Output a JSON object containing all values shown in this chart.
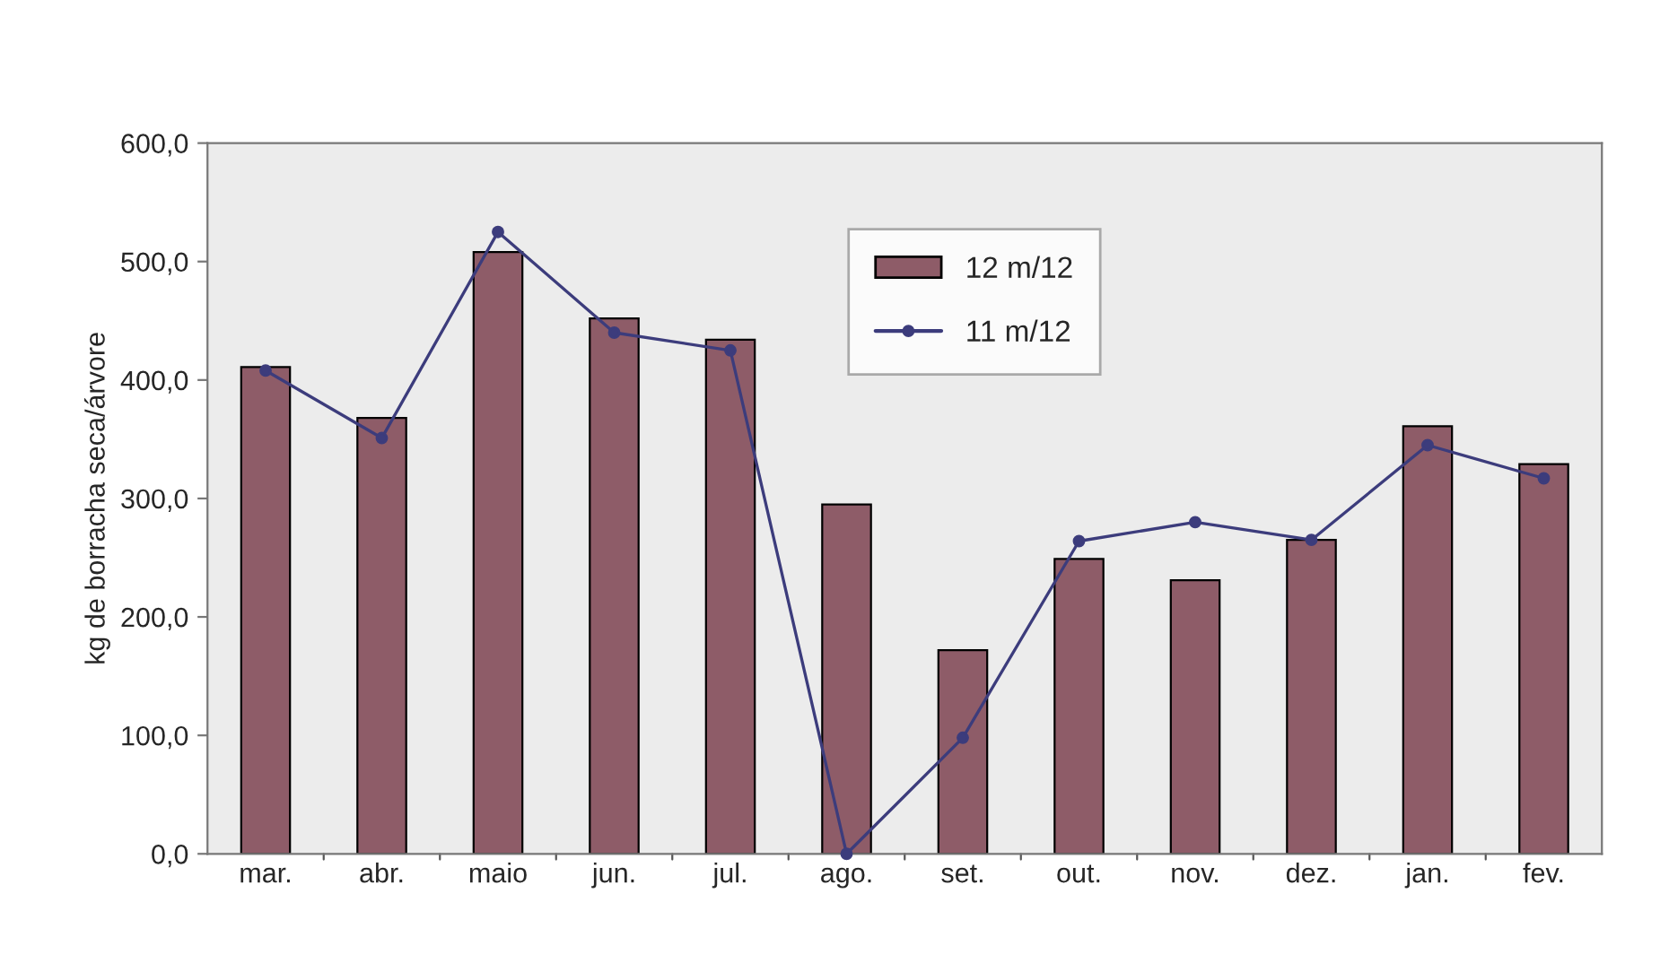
{
  "chart_data": {
    "type": "bar",
    "ylabel": "kg de borracha seca/árvore",
    "categories": [
      "mar.",
      "abr.",
      "maio",
      "jun.",
      "jul.",
      "ago.",
      "set.",
      "out.",
      "nov.",
      "dez.",
      "jan.",
      "fev."
    ],
    "series": [
      {
        "name": "12 m/12",
        "color": "#8e5c68",
        "values": [
          411,
          368,
          508,
          452,
          434,
          295,
          172,
          249,
          231,
          265,
          361,
          329
        ]
      },
      {
        "name": "11 m/12",
        "type": "line",
        "color": "#3c3c7c",
        "values": [
          408,
          351,
          525,
          440,
          425,
          0,
          98,
          264,
          280,
          265,
          345,
          317
        ]
      }
    ],
    "ylim": [
      0,
      600
    ],
    "yticks": [
      {
        "value": 0,
        "label": "0,0"
      },
      {
        "value": 100,
        "label": "100,0"
      },
      {
        "value": 200,
        "label": "200,0"
      },
      {
        "value": 300,
        "label": "300,0"
      },
      {
        "value": 400,
        "label": "400,0"
      },
      {
        "value": 500,
        "label": "500,0"
      },
      {
        "value": 600,
        "label": "600,0"
      }
    ],
    "legend": "top",
    "marker": "circle",
    "line_style": "solid",
    "grid": false
  }
}
